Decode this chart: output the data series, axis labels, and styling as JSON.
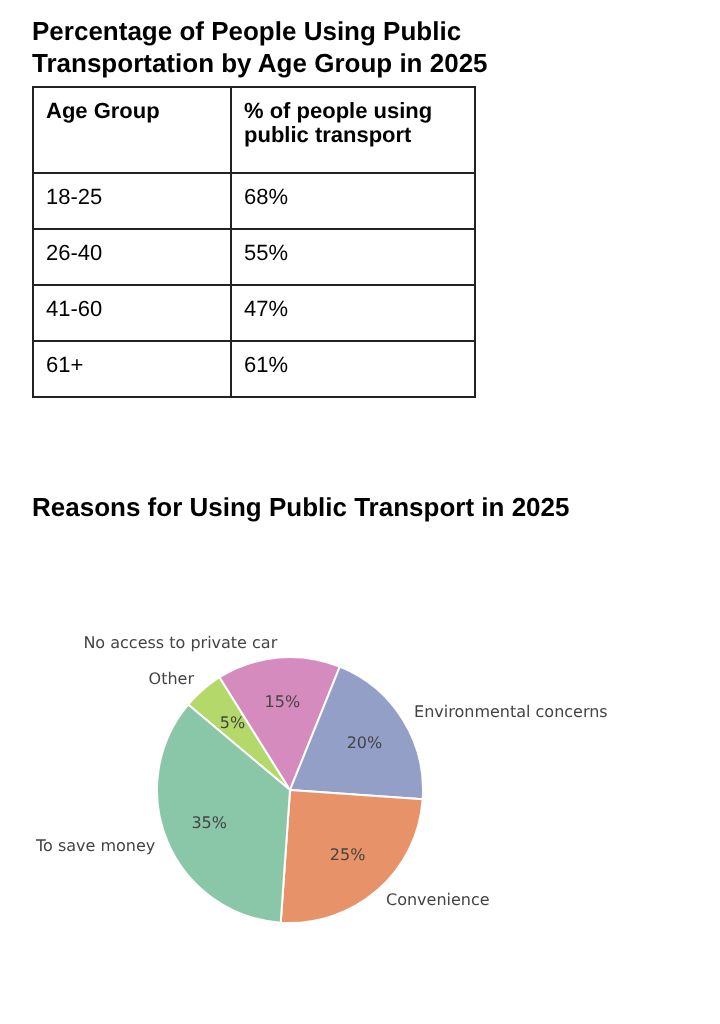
{
  "chart_data": [
    {
      "type": "other",
      "title": "Percentage of People Using Public Transportation by Age Group in 2025",
      "xlabel": "Age Group",
      "ylabel": "% of people using public transport",
      "categories": [
        "18-25",
        "26-40",
        "41-60",
        "61+"
      ],
      "value_labels": [
        "68%",
        "55%",
        "47%",
        "61%"
      ]
    },
    {
      "type": "pie",
      "title": "Reasons for Using Public Transport in 2025",
      "categories": [
        "Other",
        "No access to private car",
        "Environmental concerns",
        "Convenience",
        "To save money"
      ],
      "values": [
        5,
        15,
        20,
        25,
        35
      ],
      "value_labels": [
        "5%",
        "15%",
        "20%",
        "25%",
        "35%"
      ],
      "colors": [
        "#b5d86a",
        "#d68bbf",
        "#949fc8",
        "#e8926a",
        "#8ac6a8"
      ]
    }
  ]
}
